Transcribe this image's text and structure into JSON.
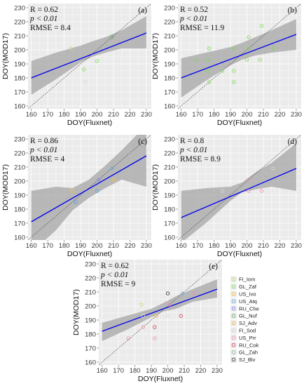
{
  "figure": {
    "background": "#ffffff",
    "panel_background": "#ebebeb",
    "fit_color": "#0000ee",
    "band_color": "#a6a6a6",
    "one_to_one_color": "#555555"
  },
  "legend": {
    "placement": "right of panel e",
    "entries": [
      {
        "name": "FI_Iom",
        "color": "#b7e07a"
      },
      {
        "name": "GL_Zaf",
        "color": "#7ed957"
      },
      {
        "name": "US_Ivo",
        "color": "#f0c040"
      },
      {
        "name": "US_Atq",
        "color": "#5aa6e6"
      },
      {
        "name": "RU_Che",
        "color": "#7c7ff0"
      },
      {
        "name": "GL_Nuf",
        "color": "#66b066"
      },
      {
        "name": "SJ_Adv",
        "color": "#f2b04a"
      },
      {
        "name": "FI_Sod",
        "color": "#d9d9d9"
      },
      {
        "name": "US_Prr",
        "color": "#f48fb1"
      },
      {
        "name": "RU_Cok",
        "color": "#e23d4f"
      },
      {
        "name": "GL_Zah",
        "color": "#8fc6a0"
      },
      {
        "name": "SJ_Blv",
        "color": "#333333"
      }
    ]
  },
  "chart_data": [
    {
      "type": "scatter",
      "panel_label": "(a)",
      "stats": {
        "r": "R = 0.62",
        "p": "p < 0.01",
        "rmse": "RMSE = 8.4"
      },
      "xlabel": "DOY(Fluxnet)",
      "ylabel": "DOY(MOD17)",
      "xlim": [
        158,
        233
      ],
      "ylim": [
        158,
        233
      ],
      "xticks": [
        160,
        170,
        180,
        190,
        200,
        210,
        220,
        230
      ],
      "yticks": [
        160,
        170,
        180,
        190,
        200,
        210,
        220,
        230
      ],
      "grid": true,
      "one_to_one_line": true,
      "fit": {
        "x": [
          160,
          230
        ],
        "y": [
          180,
          212
        ]
      },
      "band": {
        "x": [
          160,
          175,
          190,
          197,
          205,
          215,
          230
        ],
        "upper": [
          192,
          198,
          203,
          206,
          209,
          214,
          224
        ],
        "lower": [
          168,
          179,
          191,
          195,
          198,
          201,
          201
        ]
      },
      "points": [
        {
          "x": 184,
          "y": 201,
          "series": "FI_Iom"
        },
        {
          "x": 192,
          "y": 186,
          "series": "GL_Zaf"
        },
        {
          "x": 193,
          "y": 177,
          "series": "FI_Sod"
        },
        {
          "x": 200,
          "y": 192,
          "series": "GL_Zaf"
        },
        {
          "x": 209,
          "y": 209,
          "series": "GL_Nuf"
        }
      ]
    },
    {
      "type": "scatter",
      "panel_label": "(b)",
      "stats": {
        "r": "R = 0.52",
        "p": "p < 0.01",
        "rmse": "RMSE = 11.9"
      },
      "xlabel": "DOY(Fluxnet)",
      "ylabel": "DOY(MOD17)",
      "xlim": [
        158,
        233
      ],
      "ylim": [
        158,
        233
      ],
      "xticks": [
        160,
        170,
        180,
        190,
        200,
        210,
        220,
        230
      ],
      "yticks": [
        160,
        170,
        180,
        190,
        200,
        210,
        220,
        230
      ],
      "grid": true,
      "one_to_one_line": true,
      "fit": {
        "x": [
          160,
          230
        ],
        "y": [
          180,
          211
        ]
      },
      "band": {
        "x": [
          160,
          175,
          190,
          197,
          205,
          215,
          230
        ],
        "upper": [
          194,
          198,
          202,
          205,
          209,
          214,
          222
        ],
        "lower": [
          166,
          178,
          189,
          193,
          196,
          198,
          200
        ]
      },
      "points": [
        {
          "x": 169,
          "y": 193,
          "series": "GL_Zaf"
        },
        {
          "x": 176,
          "y": 193,
          "series": "GL_Zaf"
        },
        {
          "x": 176,
          "y": 185,
          "series": "GL_Zaf"
        },
        {
          "x": 177,
          "y": 177,
          "series": "GL_Zaf"
        },
        {
          "x": 177,
          "y": 201,
          "series": "GL_Zaf"
        },
        {
          "x": 185,
          "y": 185,
          "series": "GL_Zaf"
        },
        {
          "x": 192,
          "y": 177,
          "series": "GL_Zaf"
        },
        {
          "x": 192,
          "y": 185,
          "series": "GL_Zaf"
        },
        {
          "x": 192,
          "y": 201,
          "series": "GL_Zaf"
        },
        {
          "x": 200,
          "y": 193,
          "series": "GL_Zaf"
        },
        {
          "x": 201,
          "y": 201,
          "series": "GL_Zaf"
        },
        {
          "x": 201,
          "y": 209,
          "series": "GL_Zaf"
        },
        {
          "x": 208,
          "y": 193,
          "series": "GL_Zaf"
        },
        {
          "x": 209,
          "y": 217,
          "series": "GL_Zaf"
        },
        {
          "x": 216,
          "y": 201,
          "series": "GL_Zaf"
        }
      ]
    },
    {
      "type": "scatter",
      "panel_label": "(c)",
      "stats": {
        "r": "R = 0.86",
        "p": "p < 0.01",
        "rmse": "RMSE = 4"
      },
      "xlabel": "DOY(Fluxnet)",
      "ylabel": "DOY(MOD17)",
      "xlim": [
        158,
        233
      ],
      "ylim": [
        158,
        233
      ],
      "xticks": [
        160,
        170,
        180,
        190,
        200,
        210,
        220,
        230
      ],
      "yticks": [
        160,
        170,
        180,
        190,
        200,
        210,
        220,
        230
      ],
      "grid": true,
      "one_to_one_line": true,
      "fit": {
        "x": [
          160,
          230
        ],
        "y": [
          171,
          218
        ]
      },
      "band": {
        "x": [
          160,
          175,
          185,
          195,
          205,
          215,
          230
        ],
        "upper": [
          193,
          196,
          195,
          201,
          211,
          222,
          240
        ],
        "lower": [
          149,
          165,
          179,
          188,
          195,
          201,
          196
        ]
      },
      "points": [
        {
          "x": 185,
          "y": 193,
          "series": "US_Ivo"
        },
        {
          "x": 187,
          "y": 185,
          "series": "US_Atq"
        },
        {
          "x": 200,
          "y": 193,
          "series": "US_Atq"
        },
        {
          "x": 201,
          "y": 201,
          "series": "RU_Che"
        },
        {
          "x": 209,
          "y": 209,
          "series": "US_Atq"
        },
        {
          "x": 210,
          "y": 201,
          "series": "US_Ivo"
        }
      ]
    },
    {
      "type": "scatter",
      "panel_label": "(d)",
      "stats": {
        "r": "R = 0.8",
        "p": "p < 0.01",
        "rmse": "RMSE = 8.9"
      },
      "xlabel": "DOY(Fluxnet)",
      "ylabel": "DOY(MOD17)",
      "xlim": [
        158,
        233
      ],
      "ylim": [
        158,
        233
      ],
      "xticks": [
        160,
        170,
        180,
        190,
        200,
        210,
        220,
        230
      ],
      "yticks": [
        160,
        170,
        180,
        190,
        200,
        210,
        220,
        230
      ],
      "grid": true,
      "one_to_one_line": true,
      "fit": {
        "x": [
          160,
          230
        ],
        "y": [
          174,
          209
        ]
      },
      "band": {
        "x": [
          160,
          175,
          190,
          197,
          205,
          215,
          230
        ],
        "upper": [
          193,
          195,
          196,
          199,
          206,
          213,
          227
        ],
        "lower": [
          156,
          170,
          186,
          192,
          194,
          196,
          193
        ]
      },
      "points": [
        {
          "x": 185,
          "y": 193,
          "series": "FI_Sod"
        },
        {
          "x": 201,
          "y": 193,
          "series": "US_Prr"
        },
        {
          "x": 201,
          "y": 201,
          "series": "US_Prr"
        },
        {
          "x": 209,
          "y": 193,
          "series": "US_Prr"
        },
        {
          "x": 216,
          "y": 209,
          "series": "FI_Sod"
        }
      ]
    },
    {
      "type": "scatter",
      "panel_label": "(e)",
      "stats": {
        "r": "R = 0.62",
        "p": "p < 0.01",
        "rmse": "RMSE = 9"
      },
      "xlabel": "DOY(Fluxnet)",
      "ylabel": "DOY(MOD17)",
      "xlim": [
        158,
        233
      ],
      "ylim": [
        158,
        233
      ],
      "xticks": [
        160,
        170,
        180,
        190,
        200,
        210,
        220,
        230
      ],
      "yticks": [
        160,
        170,
        180,
        190,
        200,
        210,
        220,
        230
      ],
      "grid": true,
      "one_to_one_line": true,
      "fit": {
        "x": [
          160,
          230
        ],
        "y": [
          182,
          212
        ]
      },
      "band": {
        "x": [
          160,
          175,
          190,
          197,
          205,
          215,
          230
        ],
        "upper": [
          188,
          193,
          198,
          202,
          207,
          212,
          219
        ],
        "lower": [
          175,
          183,
          192,
          196,
          198,
          203,
          206
        ]
      },
      "points": [
        {
          "x": 176,
          "y": 177,
          "series": "US_Prr"
        },
        {
          "x": 184,
          "y": 201,
          "series": "FI_Iom"
        },
        {
          "x": 185,
          "y": 185,
          "series": "US_Prr"
        },
        {
          "x": 185,
          "y": 193,
          "series": "FI_Sod"
        },
        {
          "x": 192,
          "y": 185,
          "series": "RU_Cok"
        },
        {
          "x": 192,
          "y": 177,
          "series": "US_Prr"
        },
        {
          "x": 193,
          "y": 193,
          "series": "SJ_Adv"
        },
        {
          "x": 200,
          "y": 209,
          "series": "SJ_Blv"
        },
        {
          "x": 200,
          "y": 193,
          "series": "FI_Sod"
        },
        {
          "x": 201,
          "y": 201,
          "series": "US_Prr"
        },
        {
          "x": 208,
          "y": 193,
          "series": "RU_Cok"
        },
        {
          "x": 209,
          "y": 209,
          "series": "US_Atq"
        },
        {
          "x": 216,
          "y": 209,
          "series": "US_Prr"
        }
      ]
    }
  ]
}
